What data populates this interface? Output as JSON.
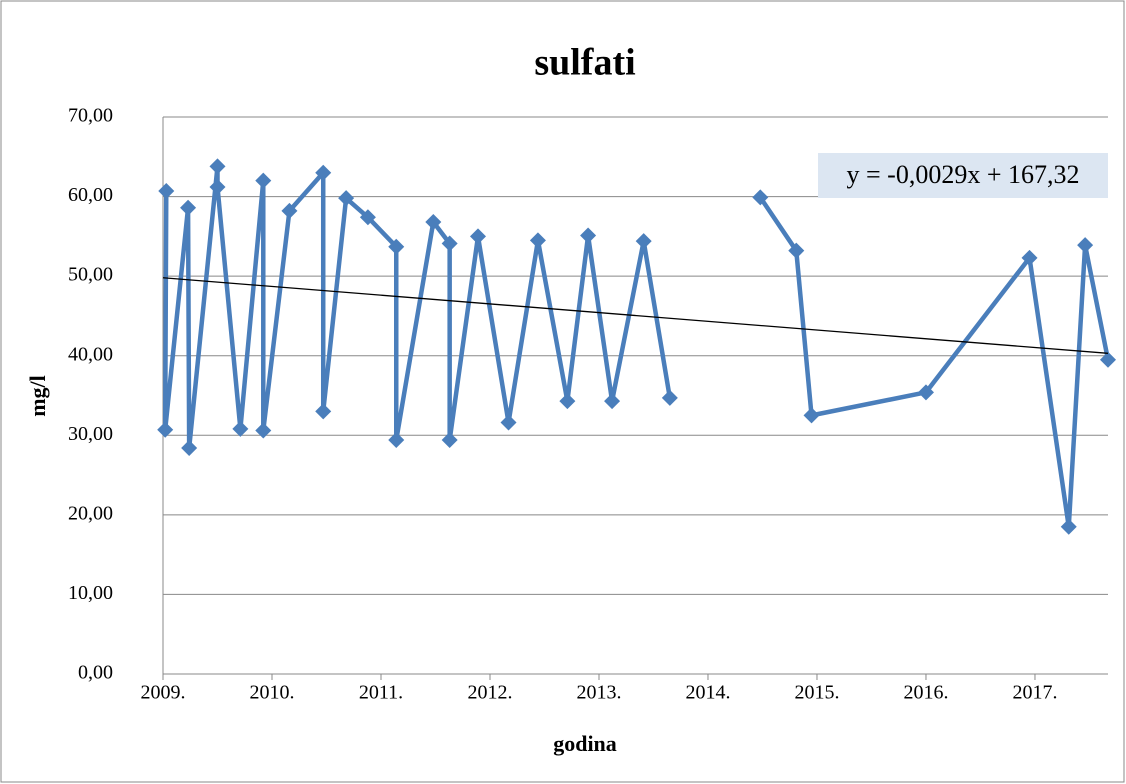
{
  "chart_data": {
    "type": "line",
    "title": "sulfati",
    "xlabel": "godina",
    "ylabel": "mg/l",
    "x": [
      2009.03,
      2009.02,
      2009.23,
      2009.24,
      2009.5,
      2009.5,
      2009.71,
      2009.92,
      2009.92,
      2010.16,
      2010.47,
      2010.47,
      2010.68,
      2010.88,
      2011.14,
      2011.14,
      2011.48,
      2011.63,
      2011.63,
      2011.89,
      2012.17,
      2012.44,
      2012.71,
      2012.9,
      2013.12,
      2013.41,
      2013.65,
      2014.0,
      2014.48,
      2014.81,
      2014.95,
      2016.0,
      2016.95,
      2017.31,
      2017.46,
      2017.67
    ],
    "series": [
      {
        "name": "sulfati",
        "color": "#4a7ebb",
        "values": [
          60.7,
          30.7,
          58.6,
          28.4,
          63.8,
          61.2,
          30.8,
          62.0,
          30.6,
          58.2,
          63.0,
          33.0,
          59.8,
          57.4,
          53.7,
          29.4,
          56.8,
          54.1,
          29.4,
          55.0,
          31.6,
          54.5,
          34.3,
          55.1,
          34.3,
          54.4,
          34.7,
          null,
          59.9,
          53.2,
          32.5,
          35.4,
          52.3,
          18.5,
          53.9,
          39.5
        ]
      }
    ],
    "trendline": {
      "label": "y = -0,0029x + 167,32",
      "color": "#000000",
      "x": [
        2009,
        2017.67
      ],
      "values": [
        49.8,
        40.3
      ]
    },
    "xlim": [
      2009,
      2017.67
    ],
    "xticks": [
      {
        "value": 2009,
        "label": "2009."
      },
      {
        "value": 2010,
        "label": "2010."
      },
      {
        "value": 2011,
        "label": "2011."
      },
      {
        "value": 2012,
        "label": "2012."
      },
      {
        "value": 2013,
        "label": "2013."
      },
      {
        "value": 2014,
        "label": "2014."
      },
      {
        "value": 2015,
        "label": "2015."
      },
      {
        "value": 2016,
        "label": "2016."
      },
      {
        "value": 2017,
        "label": "2017."
      }
    ],
    "ylim": [
      0,
      70
    ],
    "yticks": [
      {
        "value": 0,
        "label": "0,00"
      },
      {
        "value": 10,
        "label": "10,00"
      },
      {
        "value": 20,
        "label": "20,00"
      },
      {
        "value": 30,
        "label": "30,00"
      },
      {
        "value": 40,
        "label": "40,00"
      },
      {
        "value": 50,
        "label": "50,00"
      },
      {
        "value": 60,
        "label": "60,00"
      },
      {
        "value": 70,
        "label": "70,00"
      }
    ],
    "grid": true
  }
}
